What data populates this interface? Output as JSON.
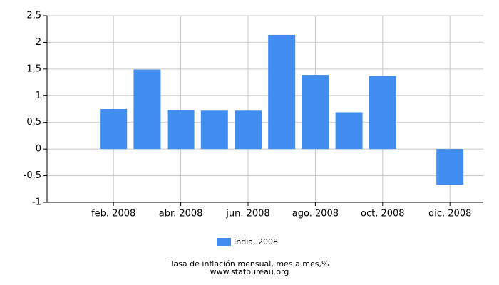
{
  "chart_data": {
    "type": "bar",
    "categories": [
      null,
      "feb. 2008",
      null,
      "abr. 2008",
      null,
      "jun. 2008",
      null,
      "ago. 2008",
      null,
      "oct. 2008",
      null,
      "dic. 2008"
    ],
    "series": [
      {
        "name": "India, 2008",
        "color": "#418ef0",
        "values": [
          null,
          0.75,
          1.49,
          0.73,
          0.72,
          0.72,
          2.14,
          1.39,
          0.69,
          1.37,
          null,
          -0.67
        ]
      }
    ],
    "ylim": [
      -1,
      2.5
    ],
    "yticks": [
      {
        "value": -1,
        "label": "-1"
      },
      {
        "value": -0.5,
        "label": "-0,5"
      },
      0,
      {
        "value": 0.5,
        "label": "0,5"
      },
      1,
      {
        "value": 1.5,
        "label": "1,5"
      },
      2,
      {
        "value": 2.5,
        "label": "2,5"
      }
    ],
    "grid": true,
    "caption": "Tasa de inflación mensual, mes a mes,%",
    "source": "www.statbureau.org"
  }
}
